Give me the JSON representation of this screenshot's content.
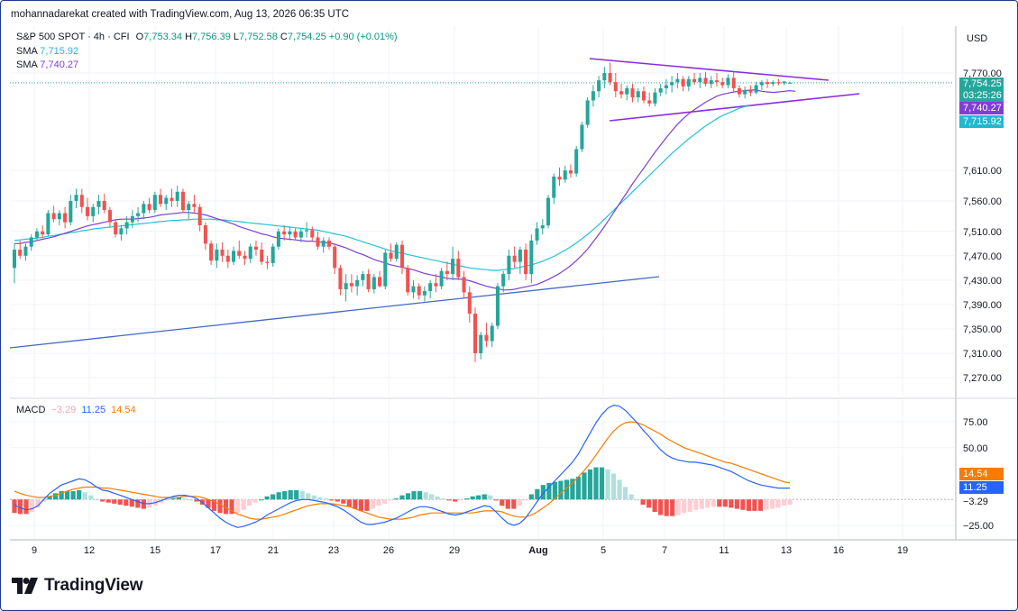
{
  "header": {
    "credit": "mohannadarekat created with TradingView.com, Aug 13, 2026 06:35 UTC",
    "symbol": "S&P 500 SPOT · 4h · CFI",
    "ohlc": {
      "o_label": "O",
      "o": "7,753.34",
      "h_label": "H",
      "h": "7,756.39",
      "l_label": "L",
      "l": "7,752.58",
      "c_label": "C",
      "c": "7,754.25",
      "change": "+0.90 (+0.01%)"
    },
    "sma1": {
      "label": "SMA",
      "value": "7,715.92"
    },
    "sma2": {
      "label": "SMA",
      "value": "7,740.27"
    },
    "macd": {
      "label": "MACD",
      "hist": "−3.29",
      "macd": "11.25",
      "signal": "14.54"
    }
  },
  "currency": "USD",
  "price_tags": {
    "last": "7,754.25",
    "countdown": "03:25:26",
    "sma_fast": "7,740.27",
    "sma_slow": "7,715.92"
  },
  "macd_tags": {
    "signal": "14.54",
    "macd": "11.25",
    "hist": "−3.29"
  },
  "brand": "TradingView",
  "colors": {
    "up": "#26a69a",
    "down": "#ef5350",
    "sma_fast": "#7e3fd4",
    "sma_slow": "#22c3d6",
    "macd_line": "#2962ff",
    "signal_line": "#f57c00",
    "trend_line": "#4169c4",
    "pennant": "#8a2be2"
  },
  "chart_data": {
    "type": "candlestick",
    "price_axis": {
      "ticks": [
        "7,770.00",
        "7,610.00",
        "7,560.00",
        "7,510.00",
        "7,470.00",
        "7,430.00",
        "7,390.00",
        "7,350.00",
        "7,310.00",
        "7,270.00"
      ]
    },
    "x_axis": {
      "ticks": [
        "9",
        "12",
        "15",
        "17",
        "21",
        "23",
        "26",
        "29",
        "Aug",
        "5",
        "7",
        "11",
        "13",
        "16",
        "19"
      ]
    },
    "candles": [
      [
        7450,
        7490,
        7425,
        7480
      ],
      [
        7480,
        7495,
        7465,
        7470
      ],
      [
        7470,
        7490,
        7462,
        7485
      ],
      [
        7485,
        7505,
        7478,
        7500
      ],
      [
        7500,
        7515,
        7495,
        7510
      ],
      [
        7510,
        7520,
        7500,
        7505
      ],
      [
        7505,
        7545,
        7502,
        7540
      ],
      [
        7540,
        7552,
        7525,
        7530
      ],
      [
        7530,
        7545,
        7520,
        7540
      ],
      [
        7540,
        7550,
        7515,
        7525
      ],
      [
        7525,
        7570,
        7520,
        7560
      ],
      [
        7560,
        7580,
        7548,
        7570
      ],
      [
        7570,
        7580,
        7540,
        7550
      ],
      [
        7550,
        7565,
        7528,
        7535
      ],
      [
        7535,
        7555,
        7525,
        7550
      ],
      [
        7550,
        7570,
        7538,
        7560
      ],
      [
        7560,
        7572,
        7540,
        7545
      ],
      [
        7545,
        7550,
        7518,
        7525
      ],
      [
        7525,
        7530,
        7500,
        7505
      ],
      [
        7505,
        7520,
        7495,
        7515
      ],
      [
        7515,
        7535,
        7505,
        7525
      ],
      [
        7525,
        7545,
        7515,
        7535
      ],
      [
        7535,
        7550,
        7525,
        7540
      ],
      [
        7540,
        7560,
        7530,
        7555
      ],
      [
        7555,
        7565,
        7540,
        7545
      ],
      [
        7545,
        7575,
        7540,
        7570
      ],
      [
        7570,
        7580,
        7550,
        7555
      ],
      [
        7555,
        7570,
        7545,
        7565
      ],
      [
        7565,
        7580,
        7550,
        7560
      ],
      [
        7560,
        7585,
        7550,
        7575
      ],
      [
        7575,
        7580,
        7540,
        7545
      ],
      [
        7545,
        7560,
        7530,
        7555
      ],
      [
        7555,
        7570,
        7540,
        7550
      ],
      [
        7550,
        7555,
        7510,
        7520
      ],
      [
        7520,
        7525,
        7480,
        7490
      ],
      [
        7490,
        7495,
        7455,
        7462
      ],
      [
        7462,
        7490,
        7450,
        7480
      ],
      [
        7480,
        7492,
        7460,
        7470
      ],
      [
        7470,
        7480,
        7450,
        7460
      ],
      [
        7460,
        7485,
        7455,
        7478
      ],
      [
        7478,
        7495,
        7465,
        7470
      ],
      [
        7470,
        7478,
        7455,
        7465
      ],
      [
        7465,
        7490,
        7458,
        7485
      ],
      [
        7485,
        7495,
        7470,
        7480
      ],
      [
        7480,
        7492,
        7455,
        7460
      ],
      [
        7460,
        7470,
        7448,
        7458
      ],
      [
        7458,
        7490,
        7452,
        7485
      ],
      [
        7485,
        7515,
        7480,
        7510
      ],
      [
        7510,
        7520,
        7495,
        7505
      ],
      [
        7505,
        7518,
        7495,
        7510
      ],
      [
        7510,
        7515,
        7495,
        7500
      ],
      [
        7500,
        7515,
        7492,
        7510
      ],
      [
        7510,
        7525,
        7500,
        7512
      ],
      [
        7512,
        7518,
        7495,
        7500
      ],
      [
        7500,
        7510,
        7480,
        7485
      ],
      [
        7485,
        7500,
        7475,
        7495
      ],
      [
        7495,
        7500,
        7480,
        7485
      ],
      [
        7485,
        7490,
        7440,
        7450
      ],
      [
        7450,
        7455,
        7405,
        7415
      ],
      [
        7415,
        7440,
        7395,
        7425
      ],
      [
        7425,
        7440,
        7410,
        7420
      ],
      [
        7420,
        7438,
        7405,
        7430
      ],
      [
        7430,
        7445,
        7420,
        7440
      ],
      [
        7440,
        7448,
        7410,
        7415
      ],
      [
        7415,
        7440,
        7408,
        7435
      ],
      [
        7435,
        7445,
        7418,
        7420
      ],
      [
        7420,
        7480,
        7415,
        7475
      ],
      [
        7475,
        7490,
        7460,
        7465
      ],
      [
        7465,
        7492,
        7460,
        7488
      ],
      [
        7488,
        7495,
        7440,
        7450
      ],
      [
        7450,
        7455,
        7405,
        7410
      ],
      [
        7410,
        7430,
        7400,
        7420
      ],
      [
        7420,
        7425,
        7398,
        7405
      ],
      [
        7405,
        7420,
        7395,
        7412
      ],
      [
        7412,
        7430,
        7400,
        7425
      ],
      [
        7425,
        7440,
        7410,
        7420
      ],
      [
        7420,
        7450,
        7415,
        7445
      ],
      [
        7445,
        7460,
        7430,
        7440
      ],
      [
        7440,
        7485,
        7430,
        7465
      ],
      [
        7465,
        7478,
        7430,
        7435
      ],
      [
        7435,
        7445,
        7400,
        7410
      ],
      [
        7410,
        7420,
        7360,
        7375
      ],
      [
        7375,
        7385,
        7295,
        7310
      ],
      [
        7310,
        7345,
        7300,
        7340
      ],
      [
        7340,
        7360,
        7320,
        7330
      ],
      [
        7330,
        7360,
        7320,
        7355
      ],
      [
        7355,
        7425,
        7350,
        7420
      ],
      [
        7420,
        7445,
        7410,
        7440
      ],
      [
        7440,
        7480,
        7430,
        7470
      ],
      [
        7470,
        7485,
        7450,
        7460
      ],
      [
        7460,
        7485,
        7440,
        7480
      ],
      [
        7480,
        7490,
        7430,
        7440
      ],
      [
        7440,
        7505,
        7425,
        7495
      ],
      [
        7495,
        7525,
        7488,
        7515
      ],
      [
        7515,
        7530,
        7505,
        7520
      ],
      [
        7520,
        7570,
        7515,
        7565
      ],
      [
        7565,
        7605,
        7555,
        7600
      ],
      [
        7600,
        7615,
        7585,
        7595
      ],
      [
        7595,
        7618,
        7590,
        7610
      ],
      [
        7610,
        7620,
        7598,
        7605
      ],
      [
        7605,
        7650,
        7600,
        7645
      ],
      [
        7645,
        7690,
        7640,
        7685
      ],
      [
        7685,
        7730,
        7680,
        7725
      ],
      [
        7725,
        7750,
        7715,
        7740
      ],
      [
        7740,
        7765,
        7730,
        7758
      ],
      [
        7758,
        7780,
        7745,
        7770
      ],
      [
        7770,
        7787,
        7750,
        7755
      ],
      [
        7755,
        7770,
        7730,
        7740
      ],
      [
        7740,
        7752,
        7728,
        7735
      ],
      [
        7735,
        7750,
        7725,
        7745
      ],
      [
        7745,
        7752,
        7722,
        7730
      ],
      [
        7730,
        7745,
        7722,
        7740
      ],
      [
        7740,
        7748,
        7720,
        7725
      ],
      [
        7725,
        7738,
        7715,
        7720
      ],
      [
        7720,
        7745,
        7715,
        7738
      ],
      [
        7738,
        7752,
        7732,
        7745
      ],
      [
        7745,
        7760,
        7735,
        7750
      ],
      [
        7750,
        7765,
        7738,
        7755
      ],
      [
        7755,
        7770,
        7745,
        7760
      ],
      [
        7760,
        7765,
        7740,
        7748
      ],
      [
        7748,
        7765,
        7740,
        7760
      ],
      [
        7760,
        7770,
        7750,
        7755
      ],
      [
        7755,
        7770,
        7745,
        7762
      ],
      [
        7762,
        7772,
        7748,
        7752
      ],
      [
        7752,
        7765,
        7745,
        7758
      ],
      [
        7758,
        7770,
        7748,
        7755
      ],
      [
        7755,
        7762,
        7745,
        7750
      ],
      [
        7750,
        7768,
        7745,
        7762
      ],
      [
        7762,
        7772,
        7740,
        7745
      ],
      [
        7745,
        7750,
        7730,
        7735
      ],
      [
        7735,
        7748,
        7728,
        7742
      ],
      [
        7742,
        7750,
        7732,
        7738
      ],
      [
        7738,
        7755,
        7735,
        7750
      ],
      [
        7750,
        7758,
        7742,
        7755
      ],
      [
        7755,
        7760,
        7745,
        7752
      ],
      [
        7752,
        7758,
        7748,
        7755
      ],
      [
        7755,
        7760,
        7750,
        7753
      ],
      [
        7753,
        7757,
        7750,
        7756
      ],
      [
        7753,
        7756,
        7752,
        7754
      ]
    ],
    "sma_fast": [
      7490,
      7490,
      7492,
      7493,
      7495,
      7497,
      7499,
      7501,
      7504,
      7507,
      7510,
      7513,
      7516,
      7519,
      7521,
      7523,
      7525,
      7527,
      7529,
      7530,
      7530,
      7530,
      7531,
      7532,
      7533,
      7535,
      7537,
      7538,
      7539,
      7540,
      7541,
      7541,
      7540,
      7539,
      7537,
      7534,
      7531,
      7528,
      7525,
      7522,
      7518,
      7515,
      7512,
      7509,
      7506,
      7504,
      7501,
      7499,
      7498,
      7497,
      7496,
      7495,
      7494,
      7494,
      7493,
      7492,
      7491,
      7489,
      7486,
      7483,
      7479,
      7475,
      7472,
      7468,
      7464,
      7461,
      7458,
      7455,
      7453,
      7451,
      7449,
      7447,
      7444,
      7441,
      7439,
      7437,
      7435,
      7433,
      7432,
      7432,
      7431,
      7429,
      7426,
      7423,
      7420,
      7418,
      7416,
      7414,
      7414,
      7415,
      7417,
      7419,
      7421,
      7423,
      7427,
      7431,
      7436,
      7441,
      7447,
      7454,
      7462,
      7471,
      7481,
      7493,
      7505,
      7518,
      7532,
      7546,
      7560,
      7574,
      7588,
      7601,
      7614,
      7627,
      7640,
      7652,
      7664,
      7675,
      7686,
      7695,
      7703,
      7710,
      7716,
      7722,
      7727,
      7732,
      7735,
      7737,
      7739,
      7740,
      7741,
      7742,
      7742,
      7740,
      7739,
      7738,
      7739,
      7740,
      7741,
      7740
    ],
    "sma_slow": [
      7495,
      7496,
      7497,
      7498,
      7499,
      7500,
      7502,
      7503,
      7505,
      7506,
      7508,
      7509,
      7511,
      7512,
      7514,
      7515,
      7516,
      7517,
      7518,
      7519,
      7520,
      7521,
      7522,
      7523,
      7524,
      7525,
      7526,
      7527,
      7528,
      7528,
      7529,
      7529,
      7530,
      7530,
      7530,
      7530,
      7529,
      7529,
      7528,
      7527,
      7526,
      7525,
      7524,
      7523,
      7522,
      7521,
      7520,
      7519,
      7518,
      7517,
      7516,
      7515,
      7514,
      7513,
      7512,
      7510,
      7508,
      7506,
      7504,
      7502,
      7499,
      7496,
      7493,
      7490,
      7487,
      7484,
      7481,
      7478,
      7476,
      7474,
      7472,
      7470,
      7468,
      7466,
      7464,
      7462,
      7460,
      7458,
      7456,
      7454,
      7452,
      7450,
      7449,
      7448,
      7447,
      7446,
      7446,
      7447,
      7448,
      7449,
      7451,
      7453,
      7455,
      7458,
      7461,
      7465,
      7469,
      7474,
      7479,
      7485,
      7491,
      7498,
      7505,
      7513,
      7521,
      7530,
      7539,
      7548,
      7557,
      7566,
      7575,
      7584,
      7593,
      7602,
      7611,
      7620,
      7629,
      7638,
      7646,
      7654,
      7662,
      7669,
      7676,
      7683,
      7689,
      7695,
      7700,
      7704,
      7708,
      7712,
      7715,
      7716
    ],
    "macd_line": [
      -5,
      -8,
      -10,
      -9,
      -6,
      0,
      6,
      10,
      14,
      16,
      18,
      20,
      19,
      16,
      12,
      9,
      8,
      6,
      4,
      2,
      0,
      -2,
      -4,
      -4,
      -3,
      -1,
      1,
      3,
      4,
      4,
      3,
      1,
      -3,
      -8,
      -13,
      -18,
      -22,
      -25,
      -27,
      -26,
      -24,
      -22,
      -19,
      -15,
      -12,
      -9,
      -6,
      -3,
      -1,
      0,
      0,
      -1,
      -2,
      -3,
      -5,
      -7,
      -10,
      -14,
      -18,
      -22,
      -24,
      -24,
      -23,
      -22,
      -20,
      -18,
      -15,
      -12,
      -9,
      -7,
      -7,
      -8,
      -10,
      -12,
      -14,
      -15,
      -14,
      -12,
      -10,
      -8,
      -6,
      -7,
      -12,
      -18,
      -23,
      -25,
      -23,
      -18,
      -10,
      -2,
      6,
      12,
      18,
      24,
      30,
      36,
      44,
      54,
      64,
      74,
      82,
      88,
      91,
      90,
      86,
      80,
      74,
      67,
      61,
      54,
      48,
      43,
      40,
      38,
      37,
      36,
      36,
      35,
      34,
      33,
      31,
      29,
      27,
      24,
      21,
      18,
      16,
      14,
      13,
      12,
      11,
      11,
      11
    ],
    "signal_line": [
      8,
      6,
      4,
      3,
      2,
      2,
      3,
      4,
      6,
      8,
      10,
      11,
      12,
      12,
      12,
      11,
      11,
      10,
      9,
      8,
      7,
      6,
      5,
      4,
      3,
      2,
      2,
      2,
      2,
      3,
      3,
      3,
      2,
      0,
      -2,
      -5,
      -8,
      -11,
      -14,
      -16,
      -18,
      -19,
      -19,
      -18,
      -17,
      -16,
      -14,
      -12,
      -10,
      -8,
      -6,
      -5,
      -4,
      -4,
      -4,
      -5,
      -6,
      -7,
      -9,
      -11,
      -13,
      -15,
      -17,
      -18,
      -19,
      -19,
      -19,
      -18,
      -17,
      -15,
      -14,
      -13,
      -13,
      -13,
      -13,
      -13,
      -13,
      -13,
      -13,
      -12,
      -11,
      -11,
      -11,
      -12,
      -14,
      -16,
      -17,
      -17,
      -15,
      -12,
      -8,
      -4,
      1,
      6,
      11,
      16,
      22,
      28,
      35,
      43,
      51,
      59,
      66,
      71,
      74,
      75,
      74,
      72,
      69,
      66,
      63,
      59,
      56,
      53,
      50,
      48,
      46,
      44,
      42,
      40,
      38,
      36,
      35,
      33,
      31,
      29,
      27,
      25,
      23,
      21,
      19,
      17,
      16,
      15,
      15,
      14.5
    ],
    "macd_axis": {
      "ticks": [
        "75.00",
        "50.00",
        "−25.00"
      ]
    }
  }
}
